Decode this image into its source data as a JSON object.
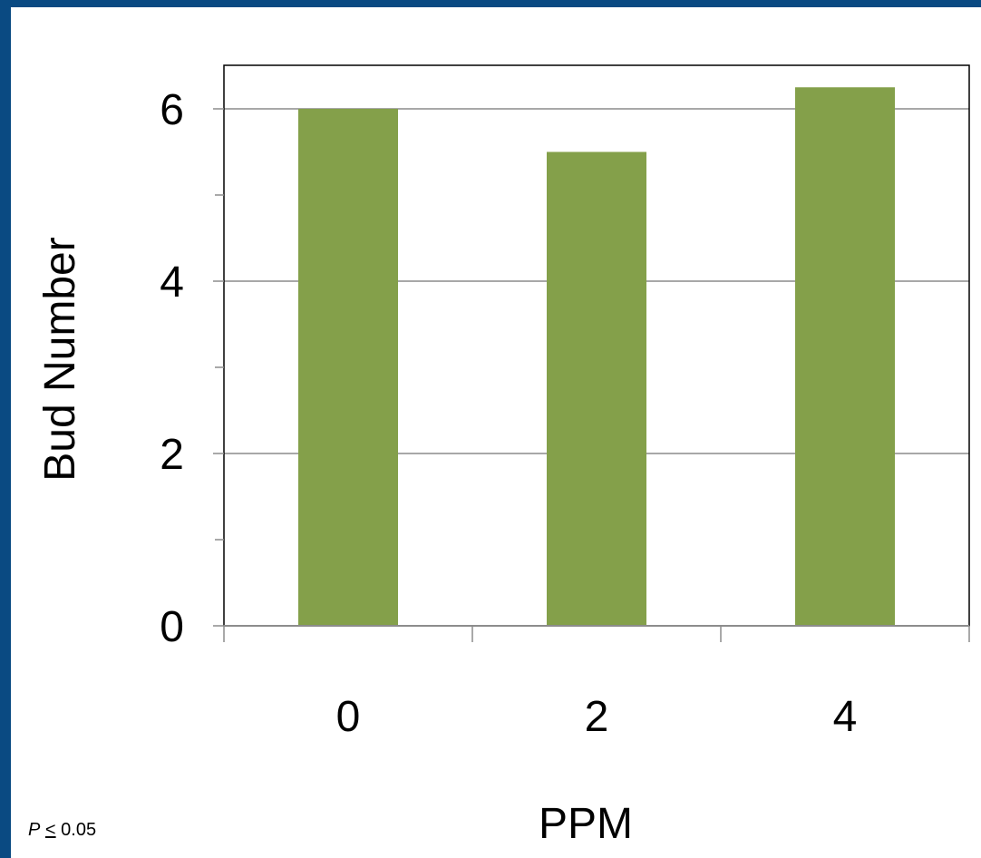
{
  "chart_data": {
    "type": "bar",
    "categories": [
      "0",
      "2",
      "4"
    ],
    "values": [
      6.0,
      5.5,
      6.25
    ],
    "title": "",
    "xlabel": "PPM",
    "ylabel": "Bud Number",
    "ylim": [
      0,
      6
    ],
    "yticks": [
      "0",
      "2",
      "4",
      "6"
    ],
    "grid": true,
    "bar_color": "#84a04a"
  },
  "footnote": {
    "p": "P",
    "le": "<",
    "value": " 0.05"
  }
}
